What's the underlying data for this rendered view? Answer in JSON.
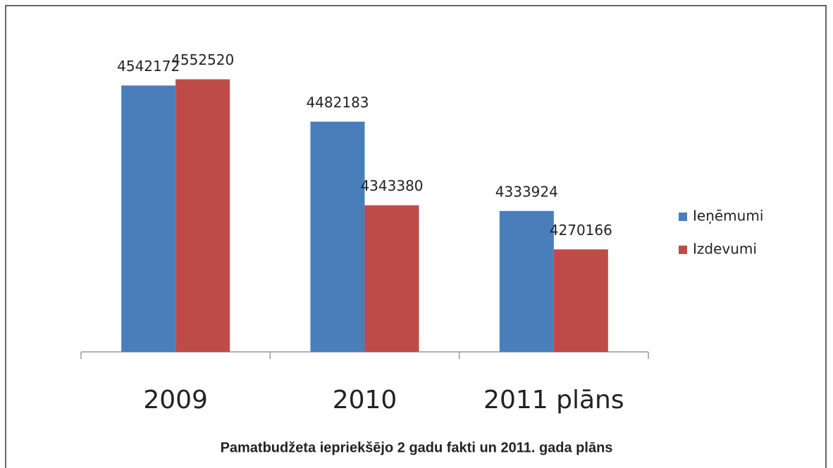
{
  "chart_data": {
    "type": "bar",
    "caption": "Pamatbudžeta  iepriekšējo 2 gadu fakti un 2011. gada plāns",
    "categories": [
      "2009",
      "2010",
      "2011 plāns"
    ],
    "series": [
      {
        "name": "Ieņēmumi",
        "color": "#4a7ebb",
        "values": [
          4542172,
          4482183,
          4333924
        ]
      },
      {
        "name": "Izdevumi",
        "color": "#be4b48",
        "values": [
          4552520,
          4343380,
          4270166
        ]
      }
    ],
    "ylim": [
      4100000,
      4600000
    ],
    "legend": "right"
  }
}
